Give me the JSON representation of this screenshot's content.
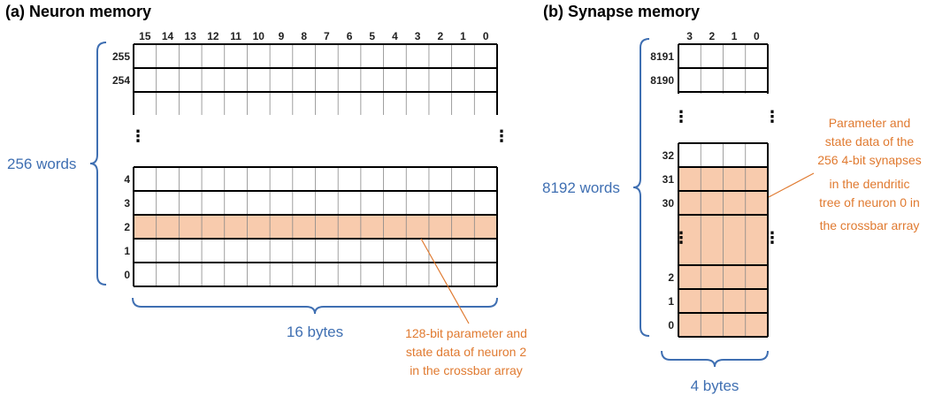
{
  "panel_a": {
    "title": "(a) Neuron memory",
    "column_labels": [
      "15",
      "14",
      "13",
      "12",
      "11",
      "10",
      "9",
      "8",
      "7",
      "6",
      "5",
      "4",
      "3",
      "2",
      "1",
      "0"
    ],
    "rows_top": [
      "255",
      "254"
    ],
    "rows_bottom": [
      "4",
      "3",
      "2",
      "1",
      "0"
    ],
    "highlight_row": "2",
    "words_label": "256 words",
    "bytes_label": "16 bytes",
    "annotation": [
      "128-bit parameter and",
      "state data of neuron 2",
      "in the crossbar array"
    ],
    "ellipsis": "⋮"
  },
  "panel_b": {
    "title": "(b) Synapse memory",
    "column_labels": [
      "3",
      "2",
      "1",
      "0"
    ],
    "rows_top": [
      "8191",
      "8190"
    ],
    "rows_mid": [
      "32",
      "31",
      "30"
    ],
    "rows_bottom": [
      "2",
      "1",
      "0"
    ],
    "words_label": "8192 words",
    "bytes_label": "4 bytes",
    "annotation": [
      "Parameter and",
      "state data of the",
      "256 4-bit synapses",
      "in the dendritic",
      "tree of neuron 0 in",
      "the crossbar array"
    ],
    "ellipsis": "⋮"
  },
  "colors": {
    "highlight_fill": "#f8cbad",
    "brace_blue": "#3f6fb2",
    "annotation_orange": "#e07a30",
    "grid_line": "#000000",
    "cell_divider": "#888888"
  }
}
